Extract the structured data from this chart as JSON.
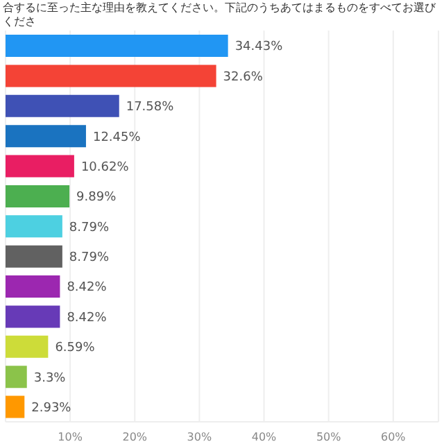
{
  "chart_data": {
    "type": "bar",
    "orientation": "horizontal",
    "title": "合するに至った主な理由を教えてください。下記のうちあてはまるものをすべてお選びくださ",
    "categories": [
      null,
      null,
      null,
      null,
      null,
      null,
      null,
      null,
      null,
      null,
      null,
      null,
      null
    ],
    "values": [
      34.43,
      32.6,
      17.58,
      12.45,
      10.62,
      9.89,
      8.79,
      8.79,
      8.42,
      8.42,
      6.59,
      3.3,
      2.93
    ],
    "value_labels": [
      "34.43%",
      "32.6%",
      "17.58%",
      "12.45%",
      "10.62%",
      "9.89%",
      "8.79%",
      "8.79%",
      "8.42%",
      "8.42%",
      "6.59%",
      "3.3%",
      "2.93%"
    ],
    "colors": [
      "#2196f3",
      "#f44336",
      "#3f51b5",
      "#1a73c0",
      "#e91e63",
      "#4caf50",
      "#4dd0e1",
      "#616161",
      "#9c27b0",
      "#673ab7",
      "#cddc39",
      "#8bc34a",
      "#ff9800"
    ],
    "xlim": [
      0,
      67
    ],
    "xticks": [
      {
        "value": 10,
        "label": "10%"
      },
      {
        "value": 20,
        "label": "20%"
      },
      {
        "value": 30,
        "label": "30%"
      },
      {
        "value": 40,
        "label": "40%"
      },
      {
        "value": 50,
        "label": "50%"
      },
      {
        "value": 60,
        "label": "60%"
      }
    ],
    "grid": "x"
  }
}
